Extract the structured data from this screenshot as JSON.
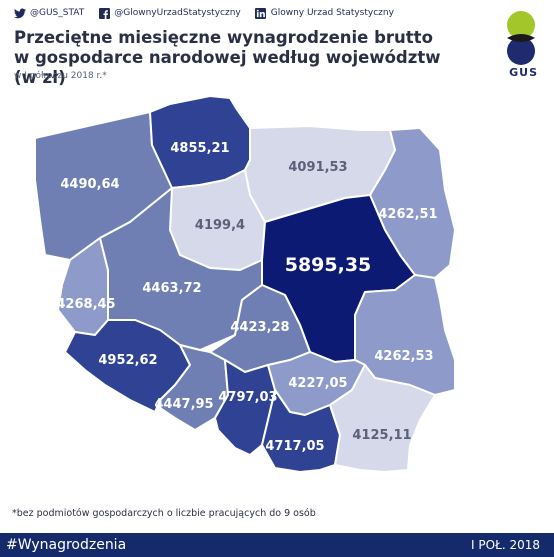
{
  "social": [
    {
      "icon": "twitter-icon",
      "text": "@GUS_STAT"
    },
    {
      "icon": "facebook-icon",
      "text": "@GlownyUrzadStatystyczny"
    },
    {
      "icon": "linkedin-icon",
      "text": "Glowny Urzad Statystyczny"
    }
  ],
  "title_line1": "Przeciętne miesięczne wynagrodzenie brutto",
  "title_line2": "w gospodarce narodowej według województw (w zł)",
  "subtitle": "w I półroczu 2018 r.*",
  "logo_text": "GUS",
  "regions": [
    {
      "id": "zachodniopomorskie",
      "value": "4490,64",
      "shade": "#6f7fb3"
    },
    {
      "id": "pomorskie",
      "value": "4855,21",
      "shade": "#2f4293"
    },
    {
      "id": "warminsko-mazurskie",
      "value": "4091,53",
      "shade": "#d5d9ea"
    },
    {
      "id": "podlaskie",
      "value": "4262,51",
      "shade": "#8d9aca"
    },
    {
      "id": "kujawsko-pomorskie",
      "value": "4199,4",
      "shade": "#d5d9ea"
    },
    {
      "id": "mazowieckie",
      "value": "5895,35",
      "shade": "#0c1a73"
    },
    {
      "id": "lubuskie",
      "value": "4268,45",
      "shade": "#8d9aca"
    },
    {
      "id": "wielkopolskie",
      "value": "4463,72",
      "shade": "#6f7fb3"
    },
    {
      "id": "lodzkie",
      "value": "4423,28",
      "shade": "#6f7fb3"
    },
    {
      "id": "lubelskie",
      "value": "4262,53",
      "shade": "#8d9aca"
    },
    {
      "id": "dolnoslaskie",
      "value": "4952,62",
      "shade": "#2f4293"
    },
    {
      "id": "opolskie",
      "value": "4447,95",
      "shade": "#6f7fb3"
    },
    {
      "id": "slaskie",
      "value": "4797,03",
      "shade": "#2f4293"
    },
    {
      "id": "swietokrzyskie",
      "value": "4227,05",
      "shade": "#8d9aca"
    },
    {
      "id": "malopolskie",
      "value": "4717,05",
      "shade": "#2f4293"
    },
    {
      "id": "podkarpackie",
      "value": "4125,11",
      "shade": "#d5d9ea"
    }
  ],
  "footnote": "*bez podmiotów gospodarczych o liczbie pracujących do 9 osób",
  "footer": {
    "hashtag": "#Wynagrodzenia",
    "date": "I POŁ. 2018"
  },
  "colors": {
    "brand": "#152a6b",
    "logo_green": "#a3c62b"
  }
}
